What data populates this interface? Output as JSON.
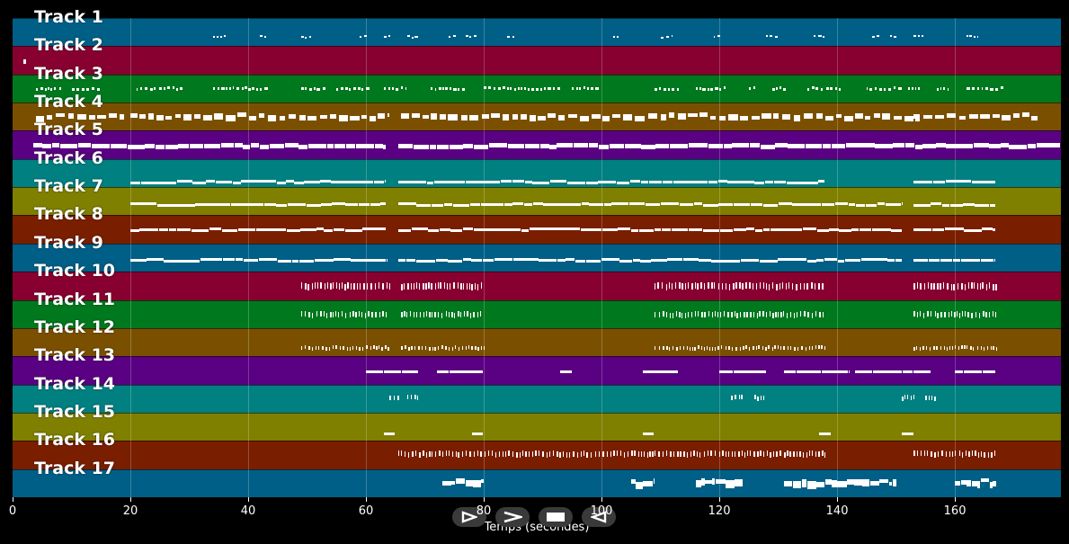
{
  "chart_data": {
    "type": "piano-roll",
    "xlabel": "Temps (secondes)",
    "xlim": [
      0,
      178
    ],
    "xticks": [
      0,
      20,
      40,
      60,
      80,
      100,
      120,
      140,
      160
    ],
    "tracks": [
      {
        "name": "Track 1",
        "color": "#005f87"
      },
      {
        "name": "Track 2",
        "color": "#870030"
      },
      {
        "name": "Track 3",
        "color": "#00781e"
      },
      {
        "name": "Track 4",
        "color": "#7a5000"
      },
      {
        "name": "Track 5",
        "color": "#5a0082"
      },
      {
        "name": "Track 6",
        "color": "#008080"
      },
      {
        "name": "Track 7",
        "color": "#7f7f00"
      },
      {
        "name": "Track 8",
        "color": "#7a1e00"
      },
      {
        "name": "Track 9",
        "color": "#005f87"
      },
      {
        "name": "Track 10",
        "color": "#870030"
      },
      {
        "name": "Track 11",
        "color": "#00781e"
      },
      {
        "name": "Track 12",
        "color": "#7a5000"
      },
      {
        "name": "Track 13",
        "color": "#5a0082"
      },
      {
        "name": "Track 14",
        "color": "#008080"
      },
      {
        "name": "Track 15",
        "color": "#7f7f00"
      },
      {
        "name": "Track 16",
        "color": "#7a1e00"
      },
      {
        "name": "Track 17",
        "color": "#005f87"
      }
    ]
  },
  "transport": [
    {
      "name": "play-icon",
      "glyph": "play"
    },
    {
      "name": "fast-forward-icon",
      "glyph": "forward"
    },
    {
      "name": "stop-icon",
      "glyph": "stop"
    },
    {
      "name": "rewind-icon",
      "glyph": "rewind"
    }
  ]
}
